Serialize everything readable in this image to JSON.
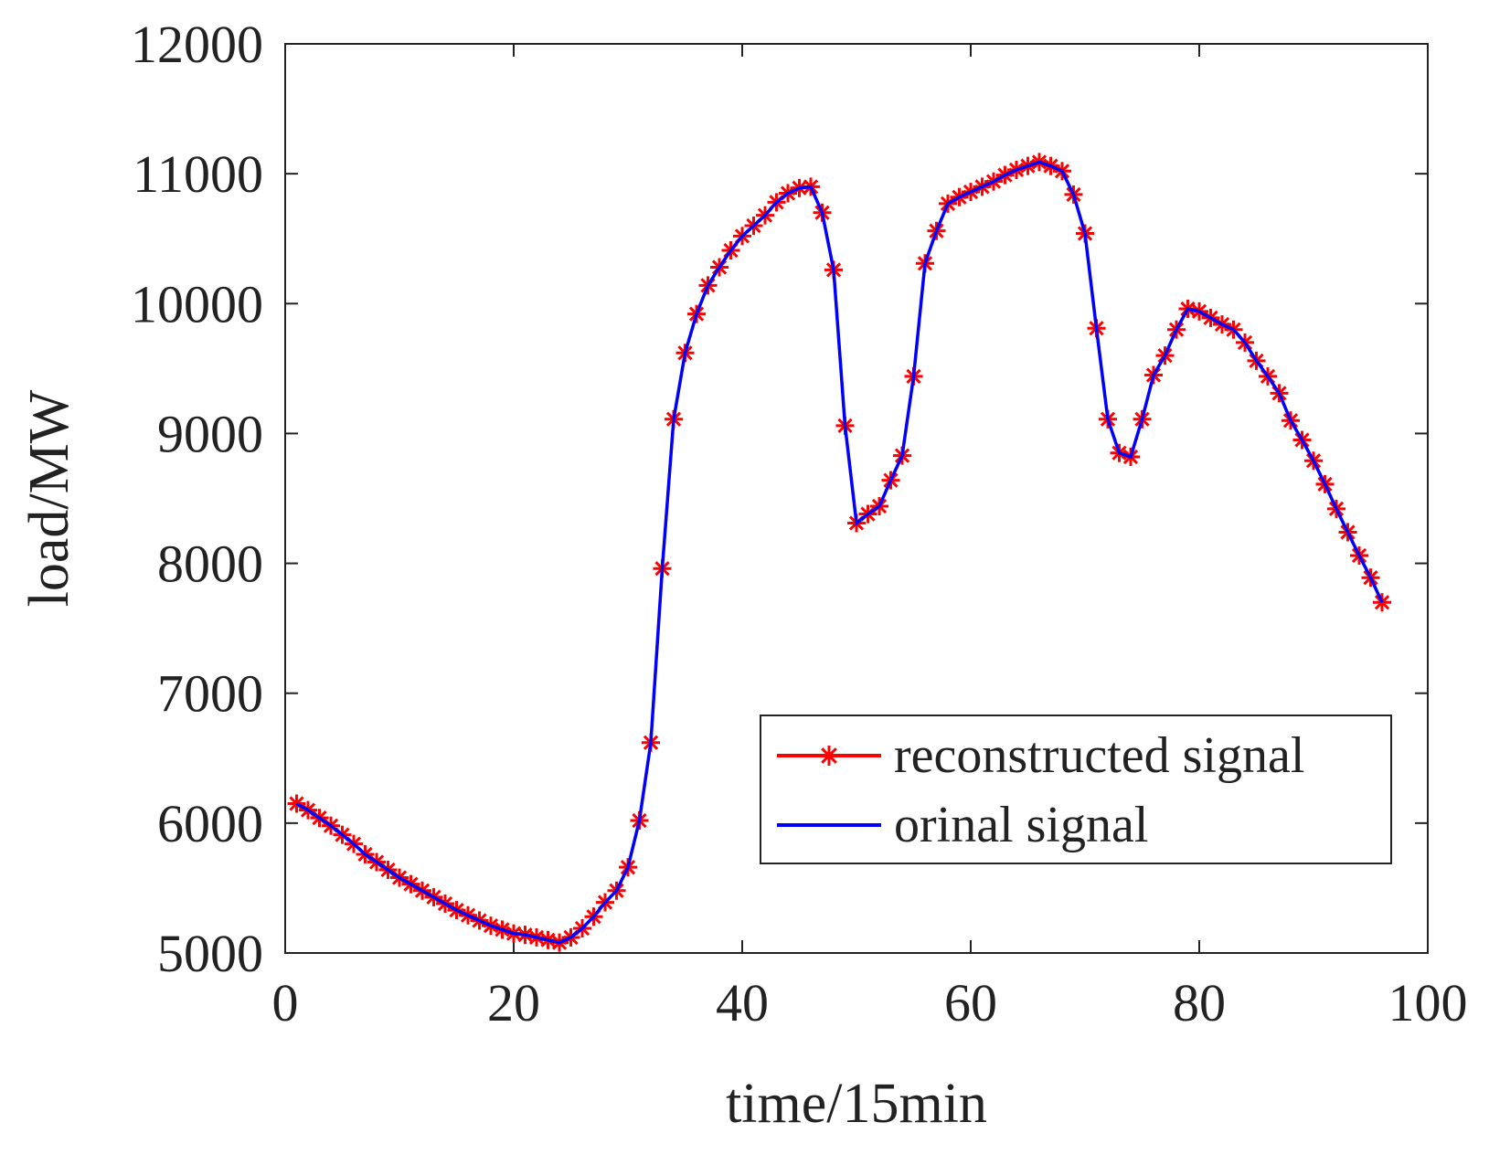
{
  "chart_data": {
    "type": "line",
    "title": "",
    "xlabel": "time/15min",
    "ylabel": "load/MW",
    "xlim": [
      0,
      100
    ],
    "ylim": [
      5000,
      12000
    ],
    "xticks": [
      0,
      20,
      40,
      60,
      80,
      100
    ],
    "yticks": [
      5000,
      6000,
      7000,
      8000,
      9000,
      10000,
      11000,
      12000
    ],
    "grid": false,
    "legend_position": "bottom-right",
    "x": [
      1,
      2,
      3,
      4,
      5,
      6,
      7,
      8,
      9,
      10,
      11,
      12,
      13,
      14,
      15,
      16,
      17,
      18,
      19,
      20,
      21,
      22,
      23,
      24,
      25,
      26,
      27,
      28,
      29,
      30,
      31,
      32,
      33,
      34,
      35,
      36,
      37,
      38,
      39,
      40,
      41,
      42,
      43,
      44,
      45,
      46,
      47,
      48,
      49,
      50,
      51,
      52,
      53,
      54,
      55,
      56,
      57,
      58,
      59,
      60,
      61,
      62,
      63,
      64,
      65,
      66,
      67,
      68,
      69,
      70,
      71,
      72,
      73,
      74,
      75,
      76,
      77,
      78,
      79,
      80,
      81,
      82,
      83,
      84,
      85,
      86,
      87,
      88,
      89,
      90,
      91,
      92,
      93,
      94,
      95,
      96
    ],
    "series": [
      {
        "name": "reconstructed signal",
        "color": "#ff0000",
        "marker": "asterisk",
        "values": [
          6150,
          6100,
          6040,
          5980,
          5910,
          5840,
          5760,
          5700,
          5640,
          5580,
          5530,
          5480,
          5430,
          5380,
          5330,
          5290,
          5250,
          5210,
          5180,
          5150,
          5140,
          5120,
          5100,
          5080,
          5120,
          5190,
          5280,
          5390,
          5480,
          5660,
          6020,
          6620,
          7960,
          9110,
          9620,
          9920,
          10140,
          10280,
          10410,
          10520,
          10600,
          10680,
          10780,
          10850,
          10890,
          10900,
          10700,
          10260,
          9060,
          8310,
          8380,
          8440,
          8640,
          8830,
          9440,
          10310,
          10560,
          10770,
          10820,
          10860,
          10900,
          10940,
          10990,
          11030,
          11060,
          11090,
          11060,
          11020,
          10840,
          10540,
          9810,
          9110,
          8850,
          8820,
          9110,
          9450,
          9600,
          9800,
          9960,
          9940,
          9890,
          9840,
          9800,
          9700,
          9560,
          9440,
          9310,
          9100,
          8950,
          8790,
          8610,
          8420,
          8240,
          8060,
          7890,
          7700
        ]
      },
      {
        "name": "orinal signal",
        "color": "#0000ff",
        "marker": "none",
        "values": [
          6150,
          6100,
          6040,
          5980,
          5910,
          5840,
          5760,
          5700,
          5640,
          5580,
          5530,
          5480,
          5430,
          5380,
          5330,
          5290,
          5250,
          5210,
          5180,
          5150,
          5140,
          5120,
          5100,
          5080,
          5120,
          5190,
          5280,
          5390,
          5480,
          5660,
          6020,
          6620,
          7960,
          9110,
          9620,
          9920,
          10140,
          10280,
          10410,
          10520,
          10600,
          10680,
          10780,
          10850,
          10890,
          10900,
          10700,
          10260,
          9060,
          8310,
          8380,
          8440,
          8640,
          8830,
          9440,
          10310,
          10560,
          10770,
          10820,
          10860,
          10900,
          10940,
          10990,
          11030,
          11060,
          11090,
          11060,
          11020,
          10840,
          10540,
          9810,
          9110,
          8850,
          8820,
          9110,
          9450,
          9600,
          9800,
          9960,
          9940,
          9890,
          9840,
          9800,
          9700,
          9560,
          9440,
          9310,
          9100,
          8950,
          8790,
          8610,
          8420,
          8240,
          8060,
          7890,
          7700
        ]
      }
    ]
  }
}
